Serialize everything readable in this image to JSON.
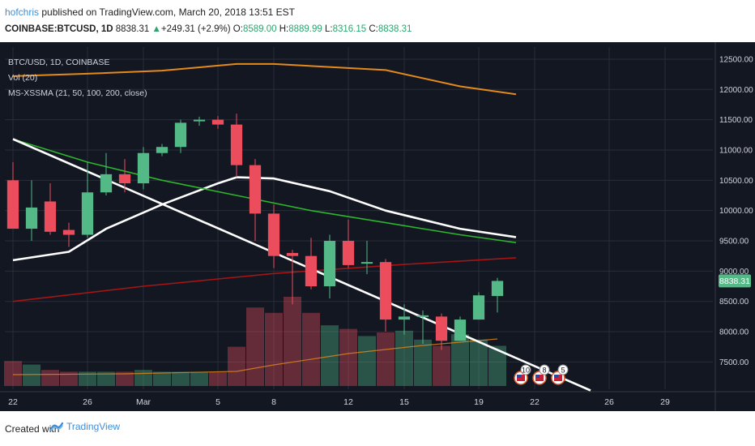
{
  "header": {
    "user": "hofchris",
    "published_text": " published on TradingView.com, March 20, 2018 13:51 EST",
    "symbol": "COINBASE:BTCUSD, 1D",
    "last": "8838.31",
    "up_arrow": "▲",
    "change": "+249.31 (+2.9%)",
    "o_label": "O:",
    "o_value": "8589.00",
    "h_label": "H:",
    "h_value": "8889.99",
    "l_label": "L:",
    "l_value": "8316.15",
    "c_label": "C:",
    "c_value": "8838.31"
  },
  "legend": {
    "line1": "BTC/USD, 1D, COINBASE",
    "line2": "Vol (20)",
    "line3": "MS-XSSMA (21, 50, 100, 200, close)"
  },
  "price_tag": "8838.31",
  "footer": {
    "created_with": "Created with",
    "brand": "TradingView",
    "logo_icon": "tradingview-logo-icon"
  },
  "colors": {
    "background": "#131722",
    "grid": "#2a2e39",
    "up": "#53b987",
    "down": "#eb4d5c",
    "ma_orange": "#e48a1c",
    "ma_white": "#ffffff",
    "ma_green": "#2db52d",
    "ma_red": "#a51515",
    "accent": "#3f8fd8"
  },
  "event_badges": [
    {
      "text": "10",
      "icon": "us-flag-icon",
      "date": "Mar 21"
    },
    {
      "text": "8",
      "icon": "us-flag-icon",
      "date": "Mar 22"
    },
    {
      "text": "5",
      "icon": "us-flag-icon",
      "date": "Mar 23"
    }
  ],
  "chart_data": {
    "type": "candlestick",
    "symbol": "BTC/USD",
    "interval": "1D",
    "ylim": [
      7050,
      12700
    ],
    "y_ticks": [
      12500,
      12000,
      11500,
      11000,
      10500,
      10000,
      9500,
      9000,
      8500,
      8000,
      7500
    ],
    "y_tick_labels": [
      "12500.00",
      "12000.00",
      "11500.00",
      "11000.00",
      "10500.00",
      "10000.00",
      "9500.00",
      "9000.00",
      "8500.00",
      "8000.00",
      "7500.00"
    ],
    "x_ticks": [
      {
        "label": "22",
        "index": 0
      },
      {
        "label": "26",
        "index": 4
      },
      {
        "label": "Mar",
        "index": 7
      },
      {
        "label": "5",
        "index": 11
      },
      {
        "label": "8",
        "index": 14
      },
      {
        "label": "12",
        "index": 18
      },
      {
        "label": "15",
        "index": 21
      },
      {
        "label": "19",
        "index": 25
      },
      {
        "label": "22",
        "index": 28
      },
      {
        "label": "26",
        "index": 32
      },
      {
        "label": "29",
        "index": 35
      }
    ],
    "x_slots": 38,
    "candles": [
      {
        "o": 10500,
        "h": 10800,
        "l": 9700,
        "c": 9700
      },
      {
        "o": 9700,
        "h": 10500,
        "l": 9500,
        "c": 10050
      },
      {
        "o": 10150,
        "h": 10450,
        "l": 9600,
        "c": 9650
      },
      {
        "o": 9680,
        "h": 9800,
        "l": 9400,
        "c": 9600
      },
      {
        "o": 9600,
        "h": 10800,
        "l": 9550,
        "c": 10300
      },
      {
        "o": 10300,
        "h": 10950,
        "l": 10250,
        "c": 10600
      },
      {
        "o": 10600,
        "h": 10850,
        "l": 10300,
        "c": 10450
      },
      {
        "o": 10450,
        "h": 11050,
        "l": 10350,
        "c": 10950
      },
      {
        "o": 10950,
        "h": 11100,
        "l": 10900,
        "c": 11050
      },
      {
        "o": 11050,
        "h": 11500,
        "l": 10950,
        "c": 11450
      },
      {
        "o": 11480,
        "h": 11550,
        "l": 11400,
        "c": 11500
      },
      {
        "o": 11500,
        "h": 11560,
        "l": 11350,
        "c": 11420
      },
      {
        "o": 11420,
        "h": 11600,
        "l": 10550,
        "c": 10750
      },
      {
        "o": 10750,
        "h": 10850,
        "l": 9500,
        "c": 9950
      },
      {
        "o": 9950,
        "h": 10100,
        "l": 9050,
        "c": 9250
      },
      {
        "o": 9300,
        "h": 9350,
        "l": 8450,
        "c": 9250
      },
      {
        "o": 9250,
        "h": 9550,
        "l": 8700,
        "c": 8750
      },
      {
        "o": 8750,
        "h": 9600,
        "l": 8550,
        "c": 9500
      },
      {
        "o": 9500,
        "h": 9850,
        "l": 9050,
        "c": 9100
      },
      {
        "o": 9130,
        "h": 9500,
        "l": 8950,
        "c": 9150
      },
      {
        "o": 9150,
        "h": 9200,
        "l": 8000,
        "c": 8200
      },
      {
        "o": 8200,
        "h": 8450,
        "l": 7950,
        "c": 8250
      },
      {
        "o": 8250,
        "h": 8350,
        "l": 7800,
        "c": 8270
      },
      {
        "o": 8250,
        "h": 8300,
        "l": 7700,
        "c": 7850
      },
      {
        "o": 7850,
        "h": 8250,
        "l": 7850,
        "c": 8200
      },
      {
        "o": 8200,
        "h": 8650,
        "l": 8200,
        "c": 8600
      },
      {
        "o": 8589,
        "h": 8889.99,
        "l": 8316.15,
        "c": 8838.31
      }
    ],
    "volume_relative": [
      0.28,
      0.24,
      0.18,
      0.16,
      0.16,
      0.16,
      0.16,
      0.18,
      0.16,
      0.16,
      0.16,
      0.16,
      0.44,
      0.88,
      0.82,
      1.0,
      0.82,
      0.68,
      0.64,
      0.56,
      0.6,
      0.62,
      0.52,
      0.45,
      0.58,
      0.52,
      0.45
    ],
    "series": [
      {
        "name": "MA orange",
        "color": "#e48a1c",
        "points": [
          [
            0,
            12220
          ],
          [
            4,
            12260
          ],
          [
            8,
            12310
          ],
          [
            12,
            12420
          ],
          [
            14,
            12420
          ],
          [
            20,
            12320
          ],
          [
            24,
            12050
          ],
          [
            27,
            11920
          ]
        ]
      },
      {
        "name": "MA white",
        "color": "#ffffff",
        "points": [
          [
            0,
            9180
          ],
          [
            3,
            9320
          ],
          [
            5,
            9700
          ],
          [
            8,
            10100
          ],
          [
            11,
            10450
          ],
          [
            12,
            10550
          ],
          [
            14,
            10530
          ],
          [
            17,
            10320
          ],
          [
            20,
            10000
          ],
          [
            24,
            9700
          ],
          [
            27,
            9560
          ]
        ]
      },
      {
        "name": "MA green",
        "color": "#2db52d",
        "points": [
          [
            0,
            11180
          ],
          [
            4,
            10800
          ],
          [
            8,
            10500
          ],
          [
            12,
            10250
          ],
          [
            16,
            10000
          ],
          [
            20,
            9800
          ],
          [
            24,
            9600
          ],
          [
            27,
            9470
          ]
        ]
      },
      {
        "name": "MA red",
        "color": "#a51515",
        "points": [
          [
            0,
            8500
          ],
          [
            7,
            8750
          ],
          [
            14,
            8960
          ],
          [
            21,
            9110
          ],
          [
            27,
            9220
          ]
        ]
      },
      {
        "name": "Trendline",
        "color": "#ffffff",
        "points": [
          [
            0,
            11180
          ],
          [
            31,
            7030
          ]
        ]
      }
    ]
  }
}
